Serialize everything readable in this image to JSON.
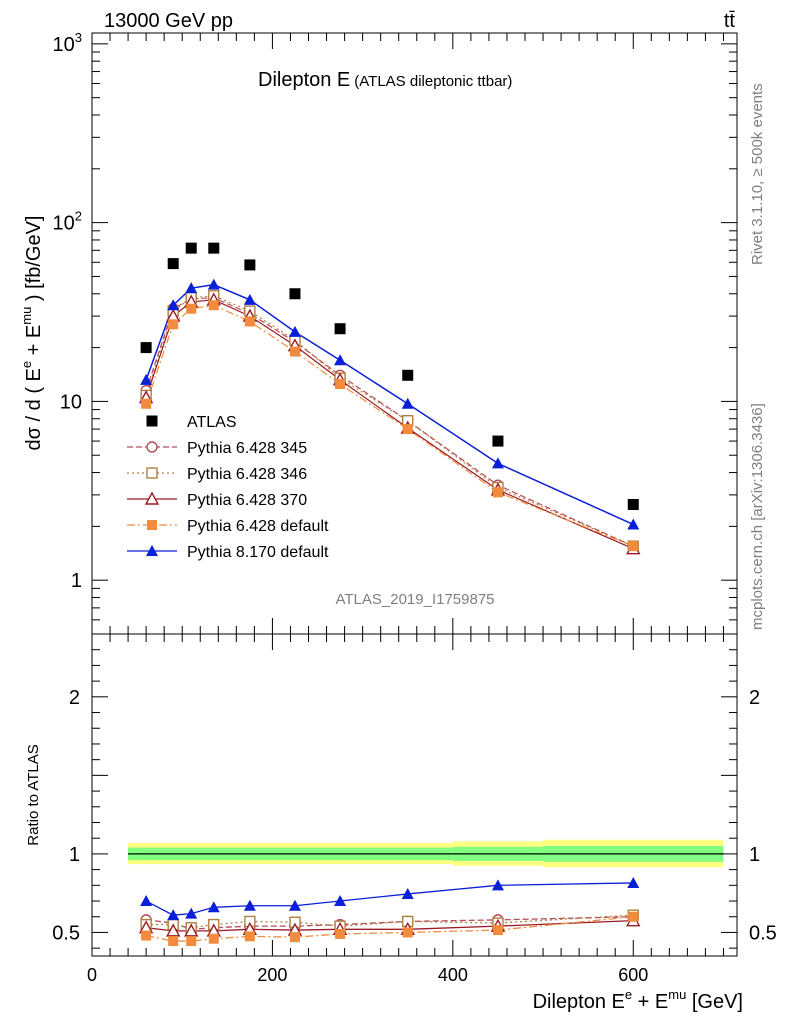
{
  "header": {
    "energy_label": "13000 GeV pp",
    "process_label": "tt̄"
  },
  "side_labels": {
    "rivet": "Rivet 3.1.10, ≥ 500k events",
    "mcplots": "mcplots.cern.ch [arXiv:1306.3436]"
  },
  "analysis_id": "ATLAS_2019_I1759875",
  "chart_data": [
    {
      "type": "scatter",
      "title": "Dilepton E",
      "subtitle": "(ATLAS dileptonic ttbar)",
      "ylabel": "dσ / d ( E^e + E^mu ) [fb/GeV]",
      "y_scale": "log",
      "ylim": [
        0.5,
        1150
      ],
      "xlim": [
        0,
        715
      ],
      "y_tick_labels": [
        "1",
        "10",
        "10²",
        "10³"
      ],
      "legend_position": "bottom-left",
      "x": [
        60,
        90,
        110,
        135,
        175,
        225,
        275,
        350,
        450,
        600
      ],
      "series": [
        {
          "name": "ATLAS",
          "color": "#000000",
          "marker": "square-filled",
          "line": "none",
          "values": [
            20,
            59,
            72,
            72,
            58,
            40,
            25.5,
            14,
            6,
            2.65
          ]
        },
        {
          "name": "Pythia 6.428 345",
          "color": "#b84a5a",
          "marker": "circle-open",
          "line": "dashed",
          "values": [
            11.5,
            33,
            37.5,
            38,
            31,
            21.5,
            14,
            7.8,
            3.4,
            1.55
          ]
        },
        {
          "name": "Pythia 6.428 346",
          "color": "#b08040",
          "marker": "square-open",
          "line": "dotted",
          "values": [
            10.8,
            32,
            38,
            39,
            32,
            22,
            13.5,
            7.8,
            3.3,
            1.55
          ]
        },
        {
          "name": "Pythia 6.428 370",
          "color": "#9a1b24",
          "marker": "triangle-open",
          "line": "solid",
          "values": [
            10.5,
            30,
            36,
            37,
            30,
            20.5,
            13.2,
            7.1,
            3.2,
            1.5
          ]
        },
        {
          "name": "Pythia 6.428 default",
          "color": "#f28c3c",
          "marker": "square-filled",
          "line": "dashdot",
          "values": [
            9.7,
            27,
            33,
            34.5,
            28,
            19,
            12.5,
            7,
            3.1,
            1.55
          ]
        },
        {
          "name": "Pythia 8.170 default",
          "color": "#0a1fd8",
          "marker": "triangle-filled",
          "line": "solid",
          "values": [
            13.2,
            34.5,
            43,
            45,
            37,
            24.5,
            17,
            9.7,
            4.5,
            2.05
          ]
        }
      ]
    },
    {
      "type": "line",
      "ylabel": "Ratio to ATLAS",
      "xlabel": "Dilepton E^e + E^mu [GeV]",
      "ylim": [
        0.35,
        2.4
      ],
      "xlim": [
        0,
        715
      ],
      "x_tick_labels": [
        "0",
        "200",
        "400",
        "600"
      ],
      "y_tick_labels": [
        "0.5",
        "1",
        "2"
      ],
      "x": [
        60,
        90,
        110,
        135,
        175,
        225,
        275,
        350,
        450,
        600
      ],
      "reference_band": {
        "edges": [
          40,
          400,
          500,
          700
        ],
        "yellow": [
          [
            0.935,
            1.07
          ],
          [
            0.925,
            1.08
          ],
          [
            0.915,
            1.09
          ]
        ],
        "green": [
          [
            0.96,
            1.04
          ],
          [
            0.955,
            1.045
          ],
          [
            0.95,
            1.05
          ]
        ]
      },
      "series": [
        {
          "name": "Pythia 6.428 345",
          "values": [
            0.58,
            0.56,
            0.52,
            0.53,
            0.54,
            0.54,
            0.55,
            0.57,
            0.58,
            0.6
          ]
        },
        {
          "name": "Pythia 6.428 346",
          "values": [
            0.55,
            0.55,
            0.53,
            0.55,
            0.57,
            0.565,
            0.54,
            0.57,
            0.56,
            0.61
          ]
        },
        {
          "name": "Pythia 6.428 370",
          "values": [
            0.53,
            0.51,
            0.51,
            0.51,
            0.52,
            0.515,
            0.52,
            0.52,
            0.54,
            0.575
          ]
        },
        {
          "name": "Pythia 6.428 default",
          "values": [
            0.48,
            0.445,
            0.445,
            0.46,
            0.475,
            0.47,
            0.49,
            0.5,
            0.515,
            0.6
          ]
        },
        {
          "name": "Pythia 8.170 default",
          "values": [
            0.7,
            0.61,
            0.62,
            0.66,
            0.67,
            0.67,
            0.7,
            0.745,
            0.8,
            0.815
          ],
          "errors": [
            0.03,
            0.025,
            0.02,
            0.018,
            0.012,
            0.015,
            0.02,
            0.018,
            0.03,
            0.03
          ]
        }
      ]
    }
  ]
}
